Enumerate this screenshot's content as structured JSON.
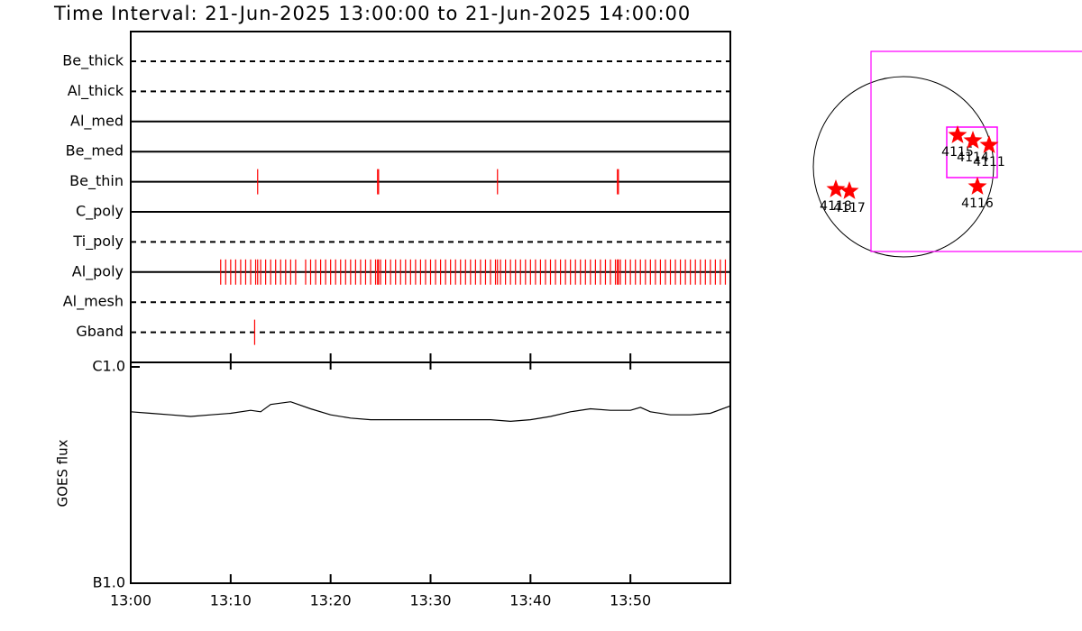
{
  "title": "Time Interval: 21-Jun-2025 13:00:00 to 21-Jun-2025 14:00:00",
  "chart_data": [
    {
      "type": "timeline",
      "color": "#ff0000",
      "xlim": [
        0,
        60
      ],
      "rows": [
        {
          "name": "Be_thick",
          "dashed": true,
          "times": []
        },
        {
          "name": "Al_thick",
          "dashed": true,
          "times": []
        },
        {
          "name": "Al_med",
          "dashed": false,
          "times": []
        },
        {
          "name": "Be_med",
          "dashed": false,
          "times": []
        },
        {
          "name": "Be_thin",
          "dashed": false,
          "times": [
            12.7,
            24.7,
            24.8,
            36.7,
            48.7,
            48.8
          ]
        },
        {
          "name": "C_poly",
          "dashed": false,
          "times": []
        },
        {
          "name": "Ti_poly",
          "dashed": true,
          "times": []
        },
        {
          "name": "Al_poly",
          "dashed": false,
          "times": [
            9,
            9.5,
            10,
            10.5,
            11,
            11.5,
            12,
            12.5,
            12.7,
            13,
            13.5,
            14,
            14.5,
            15,
            15.5,
            16,
            16.5,
            17.5,
            18,
            18.5,
            19,
            19.5,
            20,
            20.5,
            21,
            21.5,
            22,
            22.5,
            23,
            23.5,
            24,
            24.5,
            24.7,
            24.8,
            25,
            25.5,
            26,
            26.5,
            27,
            27.5,
            28,
            28.5,
            29,
            29.5,
            30,
            30.5,
            31,
            31.5,
            32,
            32.5,
            33,
            33.5,
            34,
            34.5,
            35,
            35.5,
            36,
            36.5,
            36.7,
            37,
            37.5,
            38,
            38.5,
            39,
            39.5,
            40,
            40.5,
            41,
            41.5,
            42,
            42.5,
            43,
            43.5,
            44,
            44.5,
            45,
            45.5,
            46,
            46.5,
            47,
            47.5,
            48,
            48.5,
            48.7,
            48.8,
            49,
            49.5,
            50,
            50.5,
            51,
            51.5,
            52,
            52.5,
            53,
            53.5,
            54,
            54.5,
            55,
            55.5,
            56,
            56.5,
            57,
            57.5,
            58,
            58.5,
            59,
            59.5
          ]
        },
        {
          "name": "Al_mesh",
          "dashed": true,
          "times": []
        },
        {
          "name": "Gband",
          "dashed": true,
          "times": [
            12.4
          ]
        }
      ]
    },
    {
      "type": "line",
      "ylabel": "GOES flux",
      "log_y": true,
      "color": "#000000",
      "xlim": [
        0,
        60
      ],
      "xticks": [
        {
          "value": 0,
          "label": "13:00"
        },
        {
          "value": 10,
          "label": "13:10"
        },
        {
          "value": 20,
          "label": "13:20"
        },
        {
          "value": 30,
          "label": "13:30"
        },
        {
          "value": 40,
          "label": "13:40"
        },
        {
          "value": 50,
          "label": "13:50"
        }
      ],
      "ylim": [
        1e-07,
        1e-06
      ],
      "yticks": [
        {
          "value": 1e-07,
          "label": "B1.0"
        },
        {
          "value": 1e-06,
          "label": "C1.0"
        }
      ],
      "x": [
        0,
        2,
        4,
        6,
        8,
        10,
        12,
        13,
        14,
        16,
        18,
        20,
        22,
        24,
        26,
        28,
        30,
        32,
        34,
        36,
        38,
        40,
        42,
        44,
        46,
        48,
        50,
        51,
        52,
        54,
        56,
        58,
        60
      ],
      "values": [
        6.2e-07,
        6.1e-07,
        6e-07,
        5.9e-07,
        6e-07,
        6.1e-07,
        6.3e-07,
        6.2e-07,
        6.7e-07,
        6.9e-07,
        6.4e-07,
        6e-07,
        5.8e-07,
        5.7e-07,
        5.7e-07,
        5.7e-07,
        5.7e-07,
        5.7e-07,
        5.7e-07,
        5.7e-07,
        5.6e-07,
        5.7e-07,
        5.9e-07,
        6.2e-07,
        6.4e-07,
        6.3e-07,
        6.3e-07,
        6.5e-07,
        6.2e-07,
        6e-07,
        6e-07,
        6.1e-07,
        6.6e-07
      ]
    },
    {
      "type": "map",
      "color": "#ff0000",
      "box_color": "#ff00ff",
      "labels": [
        "4115",
        "4114",
        "4111",
        "4116",
        "4118",
        "4117"
      ]
    }
  ]
}
